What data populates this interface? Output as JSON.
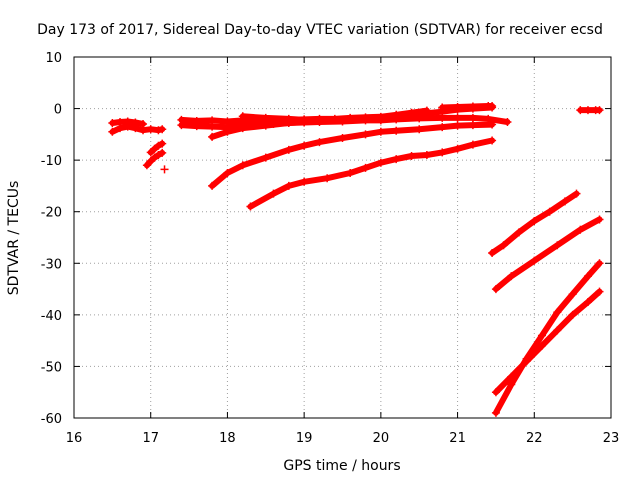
{
  "chart_data": {
    "type": "scatter",
    "title": "Day 173 of 2017, Sidereal Day-to-day VTEC variation (SDTVAR) for receiver ecsd",
    "xlabel": "GPS time / hours",
    "ylabel": "SDTVAR / TECUs",
    "xlim": [
      16,
      23
    ],
    "ylim": [
      -60,
      10
    ],
    "xticks": [
      "16",
      "17",
      "18",
      "19",
      "20",
      "21",
      "22",
      "23"
    ],
    "yticks": [
      "10",
      "0",
      "-10",
      "-20",
      "-30",
      "-40",
      "-50",
      "-60"
    ],
    "grid": true,
    "marker_color": "#ff0000",
    "series": [
      {
        "x": [
          16.5,
          16.6,
          16.7,
          16.8,
          16.9,
          17.0,
          17.1,
          17.15
        ],
        "y": [
          -4.5,
          -3.8,
          -3.5,
          -3.8,
          -4.2,
          -4.0,
          -4.2,
          -4.0
        ]
      },
      {
        "x": [
          16.5,
          16.6,
          16.7,
          16.8,
          16.9
        ],
        "y": [
          -2.8,
          -2.6,
          -2.5,
          -2.7,
          -3.0
        ]
      },
      {
        "x": [
          17.0,
          17.05,
          17.1,
          17.15
        ],
        "y": [
          -8.5,
          -7.8,
          -7.2,
          -6.8
        ]
      },
      {
        "x": [
          16.95,
          17.0,
          17.05,
          17.1,
          17.15
        ],
        "y": [
          -11.0,
          -10.2,
          -9.5,
          -9.0,
          -8.6
        ]
      },
      {
        "x": [
          17.18
        ],
        "y": [
          -11.8
        ]
      },
      {
        "x": [
          17.4,
          17.6,
          17.8,
          18.0,
          18.2,
          18.4,
          18.6,
          18.8,
          19.0,
          19.2,
          19.4,
          19.6,
          19.8,
          20.0,
          20.2,
          20.4,
          20.6
        ],
        "y": [
          -2.2,
          -2.4,
          -2.3,
          -2.5,
          -2.3,
          -2.2,
          -2.4,
          -2.2,
          -2.1,
          -2.0,
          -2.0,
          -1.8,
          -1.7,
          -1.6,
          -1.2,
          -0.8,
          -0.4
        ]
      },
      {
        "x": [
          17.4,
          17.6,
          17.8,
          18.0,
          18.2,
          18.4,
          18.6,
          18.8,
          19.0
        ],
        "y": [
          -3.2,
          -3.4,
          -3.5,
          -3.6,
          -3.3,
          -3.2,
          -3.0,
          -2.8,
          -2.6
        ]
      },
      {
        "x": [
          18.2,
          18.5,
          18.8,
          19.0,
          19.2,
          19.4,
          19.6,
          19.8,
          20.0,
          20.2,
          20.4,
          20.6,
          20.8,
          21.0,
          21.2,
          21.45
        ],
        "y": [
          -1.5,
          -1.8,
          -2.0,
          -2.2,
          -2.3,
          -2.3,
          -2.2,
          -2.0,
          -1.8,
          -1.5,
          -1.2,
          -0.9,
          -0.6,
          -0.2,
          0.0,
          0.2
        ]
      },
      {
        "x": [
          20.8,
          21.0,
          21.2,
          21.4,
          21.45
        ],
        "y": [
          0.2,
          0.3,
          0.4,
          0.5,
          0.5
        ]
      },
      {
        "x": [
          17.8,
          18.0,
          18.2,
          18.5,
          18.8,
          19.0,
          19.2,
          19.5,
          19.8,
          20.0,
          20.2,
          20.5,
          20.8,
          21.0,
          21.2,
          21.4,
          21.65
        ],
        "y": [
          -5.5,
          -4.5,
          -3.8,
          -3.3,
          -2.8,
          -2.7,
          -2.6,
          -2.5,
          -2.3,
          -2.3,
          -2.1,
          -1.9,
          -1.8,
          -1.8,
          -1.8,
          -2.0,
          -2.6
        ]
      },
      {
        "x": [
          17.8,
          18.0,
          18.2,
          18.5,
          18.8,
          19.0,
          19.2,
          19.5,
          19.8,
          20.0,
          20.2,
          20.5,
          20.8,
          21.0,
          21.2,
          21.45
        ],
        "y": [
          -15.0,
          -12.5,
          -11.0,
          -9.5,
          -8.0,
          -7.2,
          -6.5,
          -5.7,
          -5.0,
          -4.5,
          -4.3,
          -4.0,
          -3.6,
          -3.3,
          -3.2,
          -3.1
        ]
      },
      {
        "x": [
          18.3,
          18.6,
          18.8,
          19.0,
          19.3,
          19.6,
          19.8,
          20.0,
          20.2,
          20.4,
          20.6,
          20.8,
          21.0,
          21.2,
          21.45
        ],
        "y": [
          -19.0,
          -16.5,
          -15.0,
          -14.2,
          -13.5,
          -12.5,
          -11.5,
          -10.5,
          -9.8,
          -9.2,
          -9.0,
          -8.5,
          -7.8,
          -7.0,
          -6.2
        ]
      },
      {
        "x": [
          21.45,
          21.6,
          21.8,
          22.0,
          22.2,
          22.4,
          22.55
        ],
        "y": [
          -28.0,
          -26.5,
          -24.0,
          -21.8,
          -20.0,
          -18.0,
          -16.5
        ]
      },
      {
        "x": [
          21.5,
          21.7,
          22.0,
          22.3,
          22.6,
          22.85
        ],
        "y": [
          -35.0,
          -32.5,
          -29.5,
          -26.5,
          -23.5,
          -21.5
        ]
      },
      {
        "x": [
          21.5,
          21.7,
          21.9,
          22.1,
          22.3,
          22.5,
          22.7,
          22.85
        ],
        "y": [
          -55.0,
          -52.0,
          -49.0,
          -46.0,
          -43.0,
          -40.0,
          -37.5,
          -35.5
        ]
      },
      {
        "x": [
          21.5,
          21.7,
          21.9,
          22.1,
          22.3,
          22.5,
          22.7,
          22.85
        ],
        "y": [
          -59.0,
          -53.5,
          -48.5,
          -44.0,
          -39.5,
          -36.0,
          -32.5,
          -30.0
        ]
      },
      {
        "x": [
          22.6,
          22.7,
          22.8,
          22.85
        ],
        "y": [
          -0.3,
          -0.3,
          -0.3,
          -0.3
        ]
      }
    ]
  }
}
